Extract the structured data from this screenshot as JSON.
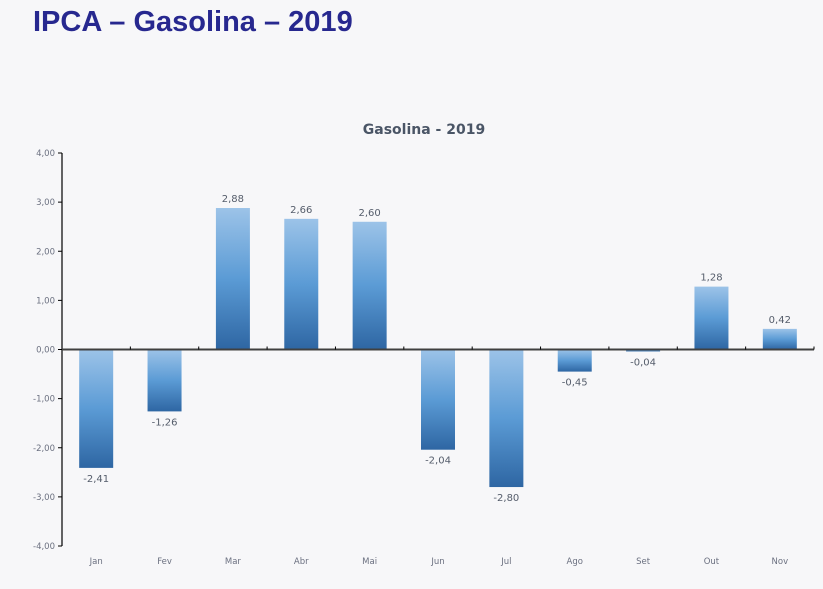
{
  "slide": {
    "title": "IPCA – Gasolina – 2019"
  },
  "colors": {
    "title": "#27288f",
    "bar_top": "#9cc3e8",
    "bar_mid": "#5b9bd5",
    "bar_bottom": "#2e66a3",
    "axis": "#404040"
  },
  "chart_data": {
    "type": "bar",
    "title": "Gasolina - 2019",
    "xlabel": "",
    "ylabel": "",
    "categories": [
      "Jan",
      "Fev",
      "Mar",
      "Abr",
      "Mai",
      "Jun",
      "Jul",
      "Ago",
      "Set",
      "Out",
      "Nov"
    ],
    "values": [
      -2.41,
      -1.26,
      2.88,
      2.66,
      2.6,
      -2.04,
      -2.8,
      -0.45,
      -0.04,
      1.28,
      0.42
    ],
    "data_labels": [
      "-2,41",
      "-1,26",
      "2,88",
      "2,66",
      "2,60",
      "-2,04",
      "-2,80",
      "-0,45",
      "-0,04",
      "1,28",
      "0,42"
    ],
    "ylim": [
      -4,
      4
    ],
    "yticks": [
      4,
      3,
      2,
      1,
      0,
      -1,
      -2,
      -3,
      -4
    ],
    "ytick_labels": [
      "4,00",
      "3,00",
      "2,00",
      "1,00",
      "0,00",
      "-1,00",
      "-2,00",
      "-3,00",
      "-4,00"
    ],
    "grid": false,
    "legend": "none"
  }
}
